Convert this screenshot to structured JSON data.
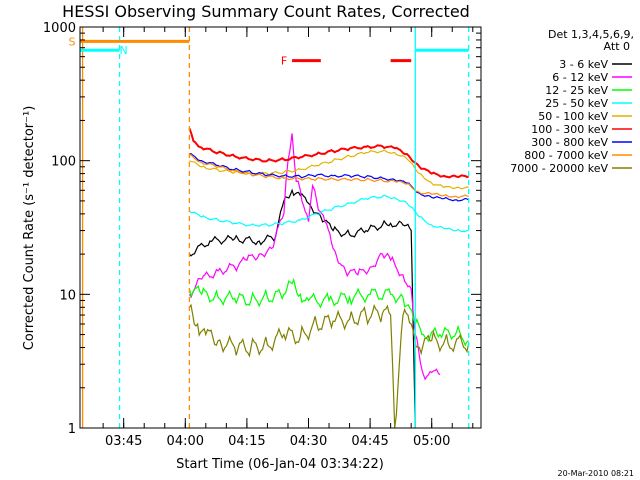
{
  "chart_data": {
    "type": "line",
    "title": "HESSI Observing Summary Count Rates, Corrected",
    "xlabel": "Start Time (06-Jan-04 03:34:22)",
    "ylabel": "Corrected Count Rate (s⁻¹ detector⁻¹)",
    "y_scale": "log",
    "ylim": [
      1,
      1000
    ],
    "y_ticks": [
      "1",
      "10",
      "100",
      "1000"
    ],
    "x_range_minutes": [
      "03:34:22",
      "05:12:00"
    ],
    "x_ticks": [
      {
        "t": "03:45",
        "label": "03:45"
      },
      {
        "t": "04:00",
        "label": "04:00"
      },
      {
        "t": "04:15",
        "label": "04:15"
      },
      {
        "t": "04:30",
        "label": "04:30"
      },
      {
        "t": "04:45",
        "label": "04:45"
      },
      {
        "t": "05:00",
        "label": "05:00"
      }
    ],
    "legend_header": [
      "Det 1,3,4,5,6,9,",
      "Att 0"
    ],
    "legend_position": "right, outside plot",
    "series": [
      {
        "name": "3 - 6 keV",
        "color": "#000000",
        "points": [
          [
            "04:01",
            20
          ],
          [
            "04:06",
            25
          ],
          [
            "04:12",
            26
          ],
          [
            "04:18",
            25
          ],
          [
            "04:22",
            27
          ],
          [
            "04:24",
            50
          ],
          [
            "04:26",
            60
          ],
          [
            "04:28",
            55
          ],
          [
            "04:30",
            48
          ],
          [
            "04:33",
            38
          ],
          [
            "04:36",
            30
          ],
          [
            "04:40",
            28
          ],
          [
            "04:44",
            30
          ],
          [
            "04:48",
            33
          ],
          [
            "04:50",
            34
          ],
          [
            "04:53",
            33
          ],
          [
            "04:55",
            30
          ],
          [
            "04:56",
            1
          ]
        ]
      },
      {
        "name": "6 - 12 keV",
        "color": "#ff00ff",
        "points": [
          [
            "04:01",
            10
          ],
          [
            "04:04",
            13
          ],
          [
            "04:08",
            15
          ],
          [
            "04:12",
            16
          ],
          [
            "04:15",
            18
          ],
          [
            "04:18",
            20
          ],
          [
            "04:21",
            22
          ],
          [
            "04:24",
            40
          ],
          [
            "04:25",
            100
          ],
          [
            "04:26",
            160
          ],
          [
            "04:27",
            70
          ],
          [
            "04:28",
            60
          ],
          [
            "04:30",
            35
          ],
          [
            "04:31",
            65
          ],
          [
            "04:32",
            50
          ],
          [
            "04:34",
            35
          ],
          [
            "04:36",
            22
          ],
          [
            "04:39",
            15
          ],
          [
            "04:42",
            14
          ],
          [
            "04:45",
            16
          ],
          [
            "04:48",
            20
          ],
          [
            "04:50",
            18
          ],
          [
            "04:53",
            14
          ],
          [
            "04:55",
            11
          ],
          [
            "04:56",
            5
          ],
          [
            "04:58",
            2.5
          ],
          [
            "05:00",
            2.6
          ],
          [
            "05:02",
            2.5
          ]
        ]
      },
      {
        "name": "12 - 25 keV",
        "color": "#00ff00",
        "points": [
          [
            "04:01",
            11
          ],
          [
            "04:04",
            10
          ],
          [
            "04:08",
            9.5
          ],
          [
            "04:12",
            9.3
          ],
          [
            "04:16",
            9
          ],
          [
            "04:20",
            9.5
          ],
          [
            "04:24",
            10
          ],
          [
            "04:26",
            12
          ],
          [
            "04:28",
            10
          ],
          [
            "04:30",
            9
          ],
          [
            "04:35",
            9
          ],
          [
            "04:40",
            9.5
          ],
          [
            "04:45",
            10
          ],
          [
            "04:50",
            10
          ],
          [
            "04:53",
            9.5
          ],
          [
            "04:56",
            6
          ],
          [
            "04:58",
            5
          ],
          [
            "05:02",
            5
          ],
          [
            "05:06",
            5.2
          ],
          [
            "05:09",
            4.5
          ]
        ]
      },
      {
        "name": "25 - 50 keV",
        "color": "#00ffff",
        "points": [
          [
            "04:01",
            42
          ],
          [
            "04:04",
            38
          ],
          [
            "04:08",
            36
          ],
          [
            "04:12",
            34
          ],
          [
            "04:16",
            33
          ],
          [
            "04:20",
            33
          ],
          [
            "04:24",
            34
          ],
          [
            "04:28",
            36
          ],
          [
            "04:32",
            40
          ],
          [
            "04:36",
            44
          ],
          [
            "04:40",
            48
          ],
          [
            "04:44",
            52
          ],
          [
            "04:48",
            54
          ],
          [
            "04:51",
            53
          ],
          [
            "04:54",
            48
          ],
          [
            "04:57",
            38
          ],
          [
            "05:00",
            33
          ],
          [
            "05:03",
            31
          ],
          [
            "05:06",
            30
          ],
          [
            "05:09",
            30
          ]
        ]
      },
      {
        "name": "50 - 100 keV",
        "color": "#e0b400",
        "points": [
          [
            "04:01",
            100
          ],
          [
            "04:04",
            90
          ],
          [
            "04:08",
            85
          ],
          [
            "04:12",
            82
          ],
          [
            "04:16",
            80
          ],
          [
            "04:20",
            80
          ],
          [
            "04:24",
            82
          ],
          [
            "04:28",
            86
          ],
          [
            "04:32",
            92
          ],
          [
            "04:36",
            100
          ],
          [
            "04:40",
            108
          ],
          [
            "04:44",
            115
          ],
          [
            "04:48",
            118
          ],
          [
            "04:51",
            115
          ],
          [
            "04:54",
            103
          ],
          [
            "04:57",
            80
          ],
          [
            "05:00",
            68
          ],
          [
            "05:03",
            63
          ],
          [
            "05:06",
            63
          ],
          [
            "05:09",
            63
          ]
        ]
      },
      {
        "name": "100 - 300 keV",
        "color": "#ff0000",
        "points": [
          [
            "04:01",
            175
          ],
          [
            "04:02",
            140
          ],
          [
            "04:04",
            125
          ],
          [
            "04:08",
            115
          ],
          [
            "04:12",
            108
          ],
          [
            "04:16",
            102
          ],
          [
            "04:20",
            100
          ],
          [
            "04:24",
            102
          ],
          [
            "04:28",
            106
          ],
          [
            "04:32",
            112
          ],
          [
            "04:36",
            118
          ],
          [
            "04:40",
            123
          ],
          [
            "04:44",
            127
          ],
          [
            "04:48",
            128
          ],
          [
            "04:51",
            124
          ],
          [
            "04:54",
            112
          ],
          [
            "04:57",
            90
          ],
          [
            "05:00",
            80
          ],
          [
            "05:03",
            77
          ],
          [
            "05:06",
            76
          ],
          [
            "05:09",
            76
          ]
        ]
      },
      {
        "name": "300 - 800 keV",
        "color": "#0000ff",
        "points": [
          [
            "04:01",
            112
          ],
          [
            "04:04",
            100
          ],
          [
            "04:08",
            92
          ],
          [
            "04:12",
            86
          ],
          [
            "04:16",
            82
          ],
          [
            "04:20",
            78
          ],
          [
            "04:24",
            77
          ],
          [
            "04:28",
            76
          ],
          [
            "04:32",
            78
          ],
          [
            "04:36",
            77
          ],
          [
            "04:40",
            77
          ],
          [
            "04:44",
            76
          ],
          [
            "04:48",
            74
          ],
          [
            "04:51",
            72
          ],
          [
            "04:54",
            68
          ],
          [
            "04:57",
            57
          ],
          [
            "05:00",
            53
          ],
          [
            "05:03",
            52
          ],
          [
            "05:06",
            51
          ],
          [
            "05:09",
            51
          ]
        ]
      },
      {
        "name": "800 - 7000 keV",
        "color": "#ff8c00",
        "points": [
          [
            "04:01",
            110
          ],
          [
            "04:04",
            97
          ],
          [
            "04:08",
            90
          ],
          [
            "04:12",
            84
          ],
          [
            "04:16",
            79
          ],
          [
            "04:20",
            76
          ],
          [
            "04:24",
            74
          ],
          [
            "04:28",
            73
          ],
          [
            "04:32",
            73
          ],
          [
            "04:36",
            73
          ],
          [
            "04:40",
            72
          ],
          [
            "04:44",
            72
          ],
          [
            "04:48",
            71
          ],
          [
            "04:51",
            70
          ],
          [
            "04:54",
            67
          ],
          [
            "04:57",
            58
          ],
          [
            "05:00",
            56
          ],
          [
            "05:03",
            55
          ],
          [
            "05:06",
            54
          ],
          [
            "05:09",
            54
          ]
        ]
      },
      {
        "name": "7000 - 20000 keV",
        "color": "#808000",
        "points": [
          [
            "04:01",
            8
          ],
          [
            "04:03",
            6
          ],
          [
            "04:05",
            5
          ],
          [
            "04:08",
            4.5
          ],
          [
            "04:12",
            4
          ],
          [
            "04:16",
            4
          ],
          [
            "04:20",
            4.2
          ],
          [
            "04:24",
            5
          ],
          [
            "04:28",
            4.8
          ],
          [
            "04:32",
            6
          ],
          [
            "04:36",
            6.3
          ],
          [
            "04:40",
            6.5
          ],
          [
            "04:44",
            7
          ],
          [
            "04:48",
            7.2
          ],
          [
            "04:50",
            7
          ],
          [
            "04:51",
            1
          ],
          [
            "04:53",
            7
          ],
          [
            "04:55",
            6
          ],
          [
            "04:57",
            4
          ],
          [
            "05:00",
            4.5
          ],
          [
            "05:04",
            4.3
          ],
          [
            "05:09",
            4.3
          ]
        ]
      }
    ],
    "annotations": [
      {
        "label": "S",
        "color": "#ff8c00",
        "y": 780,
        "x_start": "03:34:22",
        "x_end": "04:01"
      },
      {
        "label": "N",
        "color": "#00ffff",
        "y": 670,
        "x_start": "03:34:22",
        "x_end": "03:44"
      },
      {
        "label": "F",
        "color": "#ff0000",
        "y": 560,
        "segments": [
          [
            "04:26",
            "04:33"
          ],
          [
            "04:50",
            "04:55"
          ]
        ]
      },
      {
        "label": "",
        "color": "#00ffff",
        "y": 670,
        "x_start": "04:56",
        "x_end": "05:09"
      }
    ],
    "vertical_markers": [
      {
        "t": "03:35",
        "color": "#ff8c00",
        "style": "solid"
      },
      {
        "t": "03:44",
        "color": "#00ffff",
        "style": "dashed"
      },
      {
        "t": "04:01",
        "color": "#ff8c00",
        "style": "dashed"
      },
      {
        "t": "04:56",
        "color": "#00ffff",
        "style": "solid"
      },
      {
        "t": "05:09",
        "color": "#00ffff",
        "style": "dashed"
      }
    ],
    "grid": false
  },
  "stamp": "20-Mar-2010 08:21"
}
